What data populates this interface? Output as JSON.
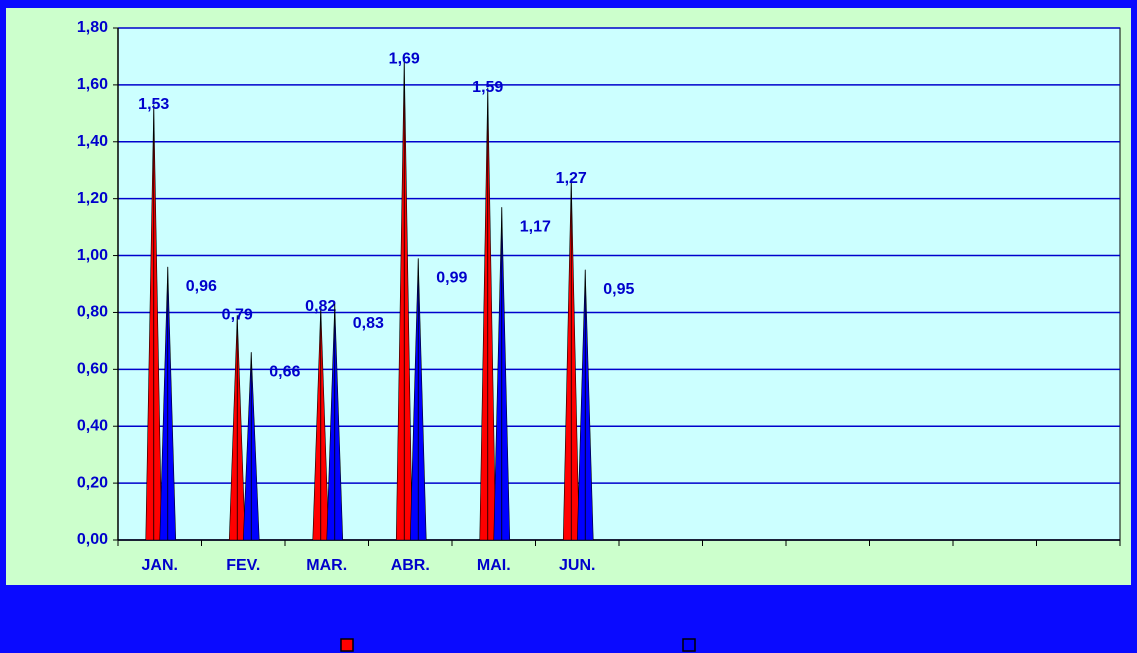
{
  "chart_data": {
    "type": "pyramid",
    "categories": [
      "JAN.",
      "FEV.",
      "MAR.",
      "ABR.",
      "MAI.",
      "JUN.",
      null,
      null,
      null,
      null,
      null,
      null
    ],
    "series": [
      {
        "color": "#ff0000",
        "values": [
          1.53,
          0.79,
          0.82,
          1.69,
          1.59,
          1.27,
          null,
          null,
          null,
          null,
          null,
          null
        ],
        "value_labels": [
          "1,53",
          "0,79",
          "0,82",
          "1,69",
          "1,59",
          "1,27",
          null,
          null,
          null,
          null,
          null,
          null
        ]
      },
      {
        "color": "#0000ff",
        "values": [
          0.96,
          0.66,
          0.83,
          0.99,
          1.17,
          0.95,
          null,
          null,
          null,
          null,
          null,
          null
        ],
        "value_labels": [
          "0,96",
          "0,66",
          "0,83",
          "0,99",
          "1,17",
          "0,95",
          null,
          null,
          null,
          null,
          null,
          null
        ]
      }
    ],
    "ylim": [
      0,
      1.8
    ],
    "yticks": [
      {
        "value": 0,
        "label": "0,00"
      },
      {
        "value": 0.2,
        "label": "0,20"
      },
      {
        "value": 0.4,
        "label": "0,40"
      },
      {
        "value": 0.6,
        "label": "0,60"
      },
      {
        "value": 0.8,
        "label": "0,80"
      },
      {
        "value": 1,
        "label": "1,00"
      },
      {
        "value": 1.2,
        "label": "1,20"
      },
      {
        "value": 1.4,
        "label": "1,40"
      },
      {
        "value": 1.6,
        "label": "1,60"
      },
      {
        "value": 1.8,
        "label": "1,80"
      }
    ],
    "grid": true
  }
}
